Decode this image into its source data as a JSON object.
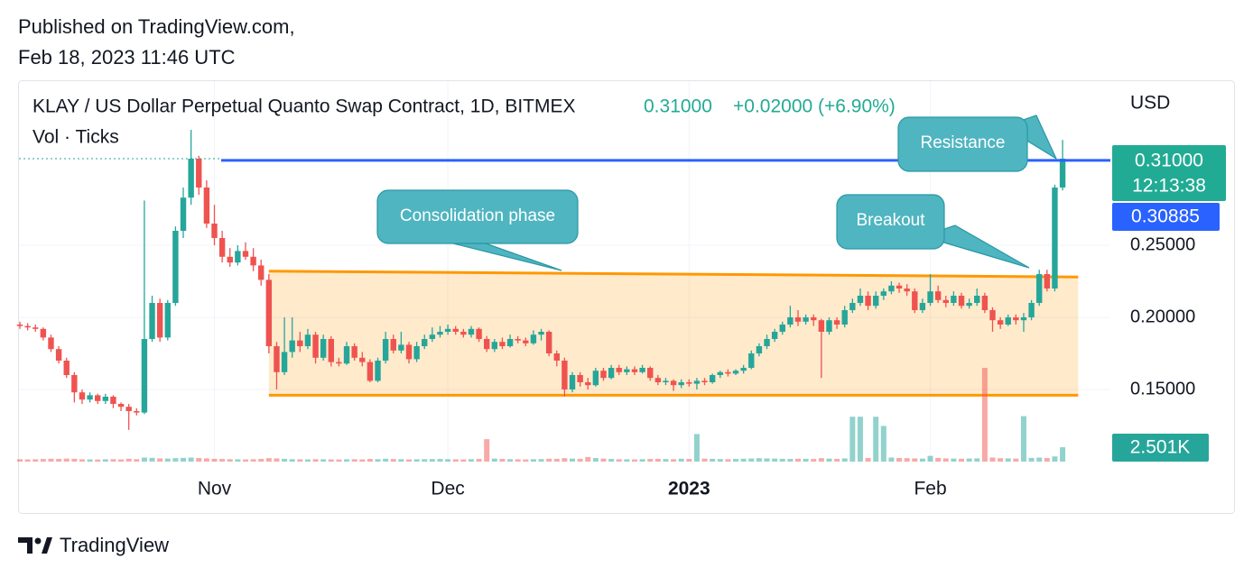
{
  "published": [
    "Published on TradingView.com,",
    "Feb 18, 2023 11:46 UTC"
  ],
  "footer": "TradingView",
  "chart_data": {
    "type": "candlestick",
    "title": "KLAY / US Dollar Perpetual Quanto Swap Contract, 1D, BITMEX",
    "indicator": "Vol · Ticks",
    "currency": "USD",
    "last_price": {
      "value": 0.31,
      "label": "0.31000"
    },
    "change": "+0.02000 (+6.90%)",
    "countdown": "12:13:38",
    "mark_price": {
      "value": 0.30885,
      "label": "0.30885"
    },
    "last_volume_label": "2.501K",
    "up_color": "#26a69a",
    "down_color": "#ef5350",
    "mark_color": "#2962ff",
    "channel_color": "#ff9800",
    "ylim": [
      0.1,
      0.3625
    ],
    "yticks": [
      {
        "value": 0.15,
        "label": "0.15000"
      },
      {
        "value": 0.2,
        "label": "0.20000"
      },
      {
        "value": 0.25,
        "label": "0.25000"
      }
    ],
    "grid": true,
    "annotations": [
      "Consolidation phase",
      "Breakout",
      "Resistance"
    ],
    "channel": {
      "start": 32,
      "end": 136,
      "top": [
        0.232,
        0.228
      ],
      "bottom": 0.146
    },
    "categories": [
      null,
      null,
      null,
      null,
      null,
      null,
      null,
      null,
      null,
      null,
      null,
      null,
      null,
      null,
      null,
      null,
      null,
      null,
      null,
      null,
      null,
      null,
      null,
      null,
      null,
      "Nov",
      null,
      null,
      null,
      null,
      null,
      null,
      null,
      null,
      null,
      null,
      null,
      null,
      null,
      null,
      null,
      null,
      null,
      null,
      null,
      null,
      null,
      null,
      null,
      null,
      null,
      null,
      null,
      null,
      null,
      "Dec",
      null,
      null,
      null,
      null,
      null,
      null,
      null,
      null,
      null,
      null,
      null,
      null,
      null,
      null,
      null,
      null,
      null,
      null,
      null,
      null,
      null,
      null,
      null,
      null,
      null,
      null,
      null,
      null,
      null,
      null,
      "2023",
      null,
      null,
      null,
      null,
      null,
      null,
      null,
      null,
      null,
      null,
      null,
      null,
      null,
      null,
      null,
      null,
      null,
      null,
      null,
      null,
      null,
      null,
      null,
      null,
      null,
      null,
      null,
      null,
      null,
      null,
      "Feb",
      null,
      null,
      null,
      null,
      null,
      null,
      null,
      null,
      null,
      null,
      null,
      null,
      null,
      null,
      null,
      null,
      null
    ],
    "open": [
      0.195,
      0.194,
      0.193,
      0.192,
      0.186,
      0.178,
      0.17,
      0.16,
      0.148,
      0.143,
      0.146,
      0.142,
      0.145,
      0.14,
      0.138,
      0.135,
      0.134,
      0.185,
      0.21,
      0.186,
      0.21,
      0.26,
      0.283,
      0.31,
      0.29,
      0.265,
      0.255,
      0.242,
      0.238,
      0.246,
      0.242,
      0.236,
      0.226,
      0.18,
      0.162,
      0.176,
      0.184,
      0.18,
      0.188,
      0.172,
      0.185,
      0.169,
      0.168,
      0.18,
      0.172,
      0.169,
      0.156,
      0.17,
      0.185,
      0.177,
      0.181,
      0.171,
      0.18,
      0.185,
      0.188,
      0.19,
      0.192,
      0.19,
      0.188,
      0.192,
      0.185,
      0.178,
      0.183,
      0.18,
      0.185,
      0.184,
      0.182,
      0.188,
      0.19,
      0.175,
      0.17,
      0.15,
      0.16,
      0.155,
      0.153,
      0.163,
      0.158,
      0.165,
      0.162,
      0.164,
      0.162,
      0.165,
      0.158,
      0.155,
      0.156,
      0.153,
      0.155,
      0.154,
      0.156,
      0.155,
      0.16,
      0.162,
      0.161,
      0.163,
      0.165,
      0.175,
      0.18,
      0.185,
      0.19,
      0.195,
      0.2,
      0.197,
      0.2,
      0.198,
      0.19,
      0.198,
      0.195,
      0.205,
      0.21,
      0.215,
      0.208,
      0.215,
      0.218,
      0.222,
      0.22,
      0.218,
      0.205,
      0.21,
      0.218,
      0.212,
      0.21,
      0.215,
      0.208,
      0.21,
      0.215,
      0.205,
      0.198,
      0.195,
      0.2,
      0.198,
      0.2,
      0.21,
      0.23,
      0.22,
      0.29
    ],
    "high": [
      0.197,
      0.196,
      0.195,
      0.193,
      0.188,
      0.18,
      0.172,
      0.162,
      0.15,
      0.148,
      0.147,
      0.147,
      0.146,
      0.141,
      0.14,
      0.137,
      0.281,
      0.215,
      0.213,
      0.212,
      0.263,
      0.29,
      0.33,
      0.312,
      0.295,
      0.278,
      0.26,
      0.248,
      0.25,
      0.252,
      0.248,
      0.24,
      0.23,
      0.183,
      0.2,
      0.2,
      0.19,
      0.192,
      0.19,
      0.188,
      0.187,
      0.172,
      0.183,
      0.182,
      0.176,
      0.171,
      0.172,
      0.19,
      0.188,
      0.19,
      0.183,
      0.183,
      0.188,
      0.193,
      0.194,
      0.195,
      0.194,
      0.192,
      0.194,
      0.193,
      0.187,
      0.185,
      0.186,
      0.188,
      0.187,
      0.186,
      0.191,
      0.192,
      0.191,
      0.177,
      0.172,
      0.162,
      0.162,
      0.158,
      0.165,
      0.165,
      0.167,
      0.167,
      0.166,
      0.166,
      0.167,
      0.166,
      0.16,
      0.158,
      0.157,
      0.157,
      0.157,
      0.158,
      0.158,
      0.161,
      0.163,
      0.164,
      0.164,
      0.167,
      0.177,
      0.182,
      0.188,
      0.192,
      0.197,
      0.208,
      0.205,
      0.202,
      0.202,
      0.199,
      0.2,
      0.2,
      0.208,
      0.213,
      0.22,
      0.218,
      0.218,
      0.22,
      0.225,
      0.224,
      0.223,
      0.22,
      0.213,
      0.23,
      0.222,
      0.215,
      0.218,
      0.217,
      0.213,
      0.22,
      0.217,
      0.207,
      0.2,
      0.202,
      0.202,
      0.203,
      0.212,
      0.233,
      0.233,
      0.292,
      0.323
    ],
    "low": [
      0.192,
      0.191,
      0.19,
      0.184,
      0.176,
      0.168,
      0.158,
      0.141,
      0.14,
      0.141,
      0.14,
      0.14,
      0.137,
      0.135,
      0.122,
      0.132,
      0.133,
      0.183,
      0.183,
      0.184,
      0.208,
      0.255,
      0.278,
      0.285,
      0.262,
      0.25,
      0.238,
      0.235,
      0.236,
      0.24,
      0.232,
      0.222,
      0.175,
      0.15,
      0.16,
      0.172,
      0.176,
      0.178,
      0.168,
      0.17,
      0.166,
      0.166,
      0.167,
      0.17,
      0.166,
      0.155,
      0.155,
      0.168,
      0.175,
      0.175,
      0.168,
      0.169,
      0.178,
      0.183,
      0.186,
      0.188,
      0.188,
      0.186,
      0.186,
      0.183,
      0.176,
      0.176,
      0.178,
      0.179,
      0.182,
      0.18,
      0.181,
      0.184,
      0.173,
      0.166,
      0.145,
      0.148,
      0.152,
      0.15,
      0.152,
      0.156,
      0.157,
      0.16,
      0.16,
      0.16,
      0.161,
      0.156,
      0.153,
      0.153,
      0.149,
      0.151,
      0.152,
      0.15,
      0.153,
      0.154,
      0.158,
      0.159,
      0.16,
      0.161,
      0.164,
      0.173,
      0.178,
      0.183,
      0.188,
      0.193,
      0.194,
      0.195,
      0.194,
      0.158,
      0.188,
      0.192,
      0.193,
      0.203,
      0.208,
      0.205,
      0.206,
      0.212,
      0.216,
      0.217,
      0.215,
      0.203,
      0.203,
      0.208,
      0.21,
      0.207,
      0.208,
      0.206,
      0.206,
      0.208,
      0.203,
      0.19,
      0.192,
      0.194,
      0.195,
      0.19,
      0.198,
      0.208,
      0.218,
      0.218,
      0.288
    ],
    "close": [
      0.194,
      0.193,
      0.192,
      0.186,
      0.178,
      0.17,
      0.16,
      0.148,
      0.143,
      0.146,
      0.142,
      0.145,
      0.14,
      0.138,
      0.135,
      0.134,
      0.185,
      0.21,
      0.186,
      0.21,
      0.26,
      0.283,
      0.31,
      0.29,
      0.265,
      0.255,
      0.242,
      0.238,
      0.246,
      0.242,
      0.236,
      0.226,
      0.18,
      0.162,
      0.176,
      0.184,
      0.18,
      0.188,
      0.172,
      0.185,
      0.169,
      0.168,
      0.18,
      0.172,
      0.169,
      0.156,
      0.17,
      0.185,
      0.177,
      0.181,
      0.171,
      0.18,
      0.185,
      0.188,
      0.19,
      0.192,
      0.19,
      0.188,
      0.192,
      0.185,
      0.178,
      0.183,
      0.18,
      0.185,
      0.184,
      0.182,
      0.188,
      0.19,
      0.175,
      0.17,
      0.15,
      0.16,
      0.155,
      0.153,
      0.163,
      0.158,
      0.165,
      0.162,
      0.164,
      0.162,
      0.165,
      0.158,
      0.155,
      0.156,
      0.153,
      0.155,
      0.154,
      0.156,
      0.155,
      0.16,
      0.162,
      0.161,
      0.163,
      0.165,
      0.175,
      0.18,
      0.185,
      0.19,
      0.195,
      0.2,
      0.197,
      0.2,
      0.198,
      0.19,
      0.198,
      0.195,
      0.205,
      0.21,
      0.215,
      0.208,
      0.215,
      0.218,
      0.222,
      0.22,
      0.218,
      0.205,
      0.21,
      0.218,
      0.212,
      0.21,
      0.215,
      0.208,
      0.21,
      0.215,
      0.205,
      0.198,
      0.195,
      0.2,
      0.198,
      0.2,
      0.21,
      0.23,
      0.22,
      0.29,
      0.31
    ],
    "volume": [
      420,
      380,
      400,
      450,
      500,
      460,
      520,
      480,
      400,
      380,
      360,
      400,
      420,
      380,
      500,
      420,
      700,
      650,
      560,
      520,
      600,
      640,
      700,
      620,
      560,
      480,
      450,
      420,
      400,
      380,
      420,
      460,
      600,
      560,
      480,
      420,
      400,
      380,
      420,
      400,
      380,
      360,
      400,
      420,
      380,
      460,
      420,
      500,
      440,
      420,
      380,
      400,
      420,
      440,
      460,
      420,
      400,
      380,
      420,
      460,
      3900,
      520,
      460,
      420,
      400,
      380,
      420,
      440,
      500,
      480,
      600,
      520,
      480,
      800,
      620,
      520,
      460,
      420,
      400,
      380,
      420,
      460,
      480,
      440,
      420,
      500,
      460,
      4800,
      520,
      480,
      440,
      420,
      460,
      500,
      540,
      600,
      560,
      520,
      480,
      460,
      500,
      480,
      460,
      600,
      520,
      480,
      560,
      7800,
      7800,
      640,
      7800,
      6200,
      700,
      640,
      600,
      560,
      520,
      1000,
      640,
      560,
      520,
      500,
      540,
      560,
      16300,
      700,
      600,
      560,
      520,
      7900,
      640,
      700,
      620,
      900,
      2501
    ]
  }
}
